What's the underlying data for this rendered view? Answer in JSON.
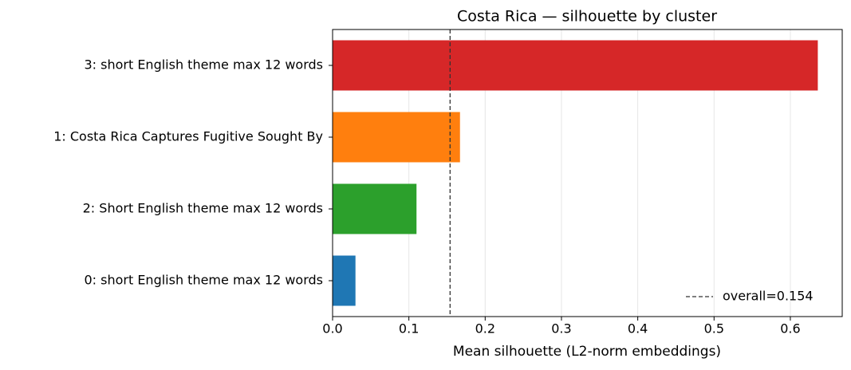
{
  "chart_data": {
    "type": "barh",
    "title": "Costa Rica — silhouette by cluster",
    "x_label": "Mean silhouette (L2-norm embeddings)",
    "categories": [
      "3: short English theme max 12 words",
      "1: Costa Rica Captures Fugitive Sought By",
      "2: Short English theme max 12 words",
      "0: short English theme max 12 words"
    ],
    "values": [
      0.636,
      0.167,
      0.11,
      0.03
    ],
    "colors": [
      "#d62728",
      "#ff7f0e",
      "#2ca02c",
      "#1f77b4"
    ],
    "xlim": [
      0,
      0.668
    ],
    "xticks": [
      {
        "value": 0,
        "label": "0.0"
      },
      0.1,
      0.2,
      0.3,
      0.4,
      0.5,
      0.6
    ],
    "grid": true,
    "reference_line": {
      "value": 0.154,
      "label": "overall=0.154"
    },
    "legend_position": "lower right"
  }
}
